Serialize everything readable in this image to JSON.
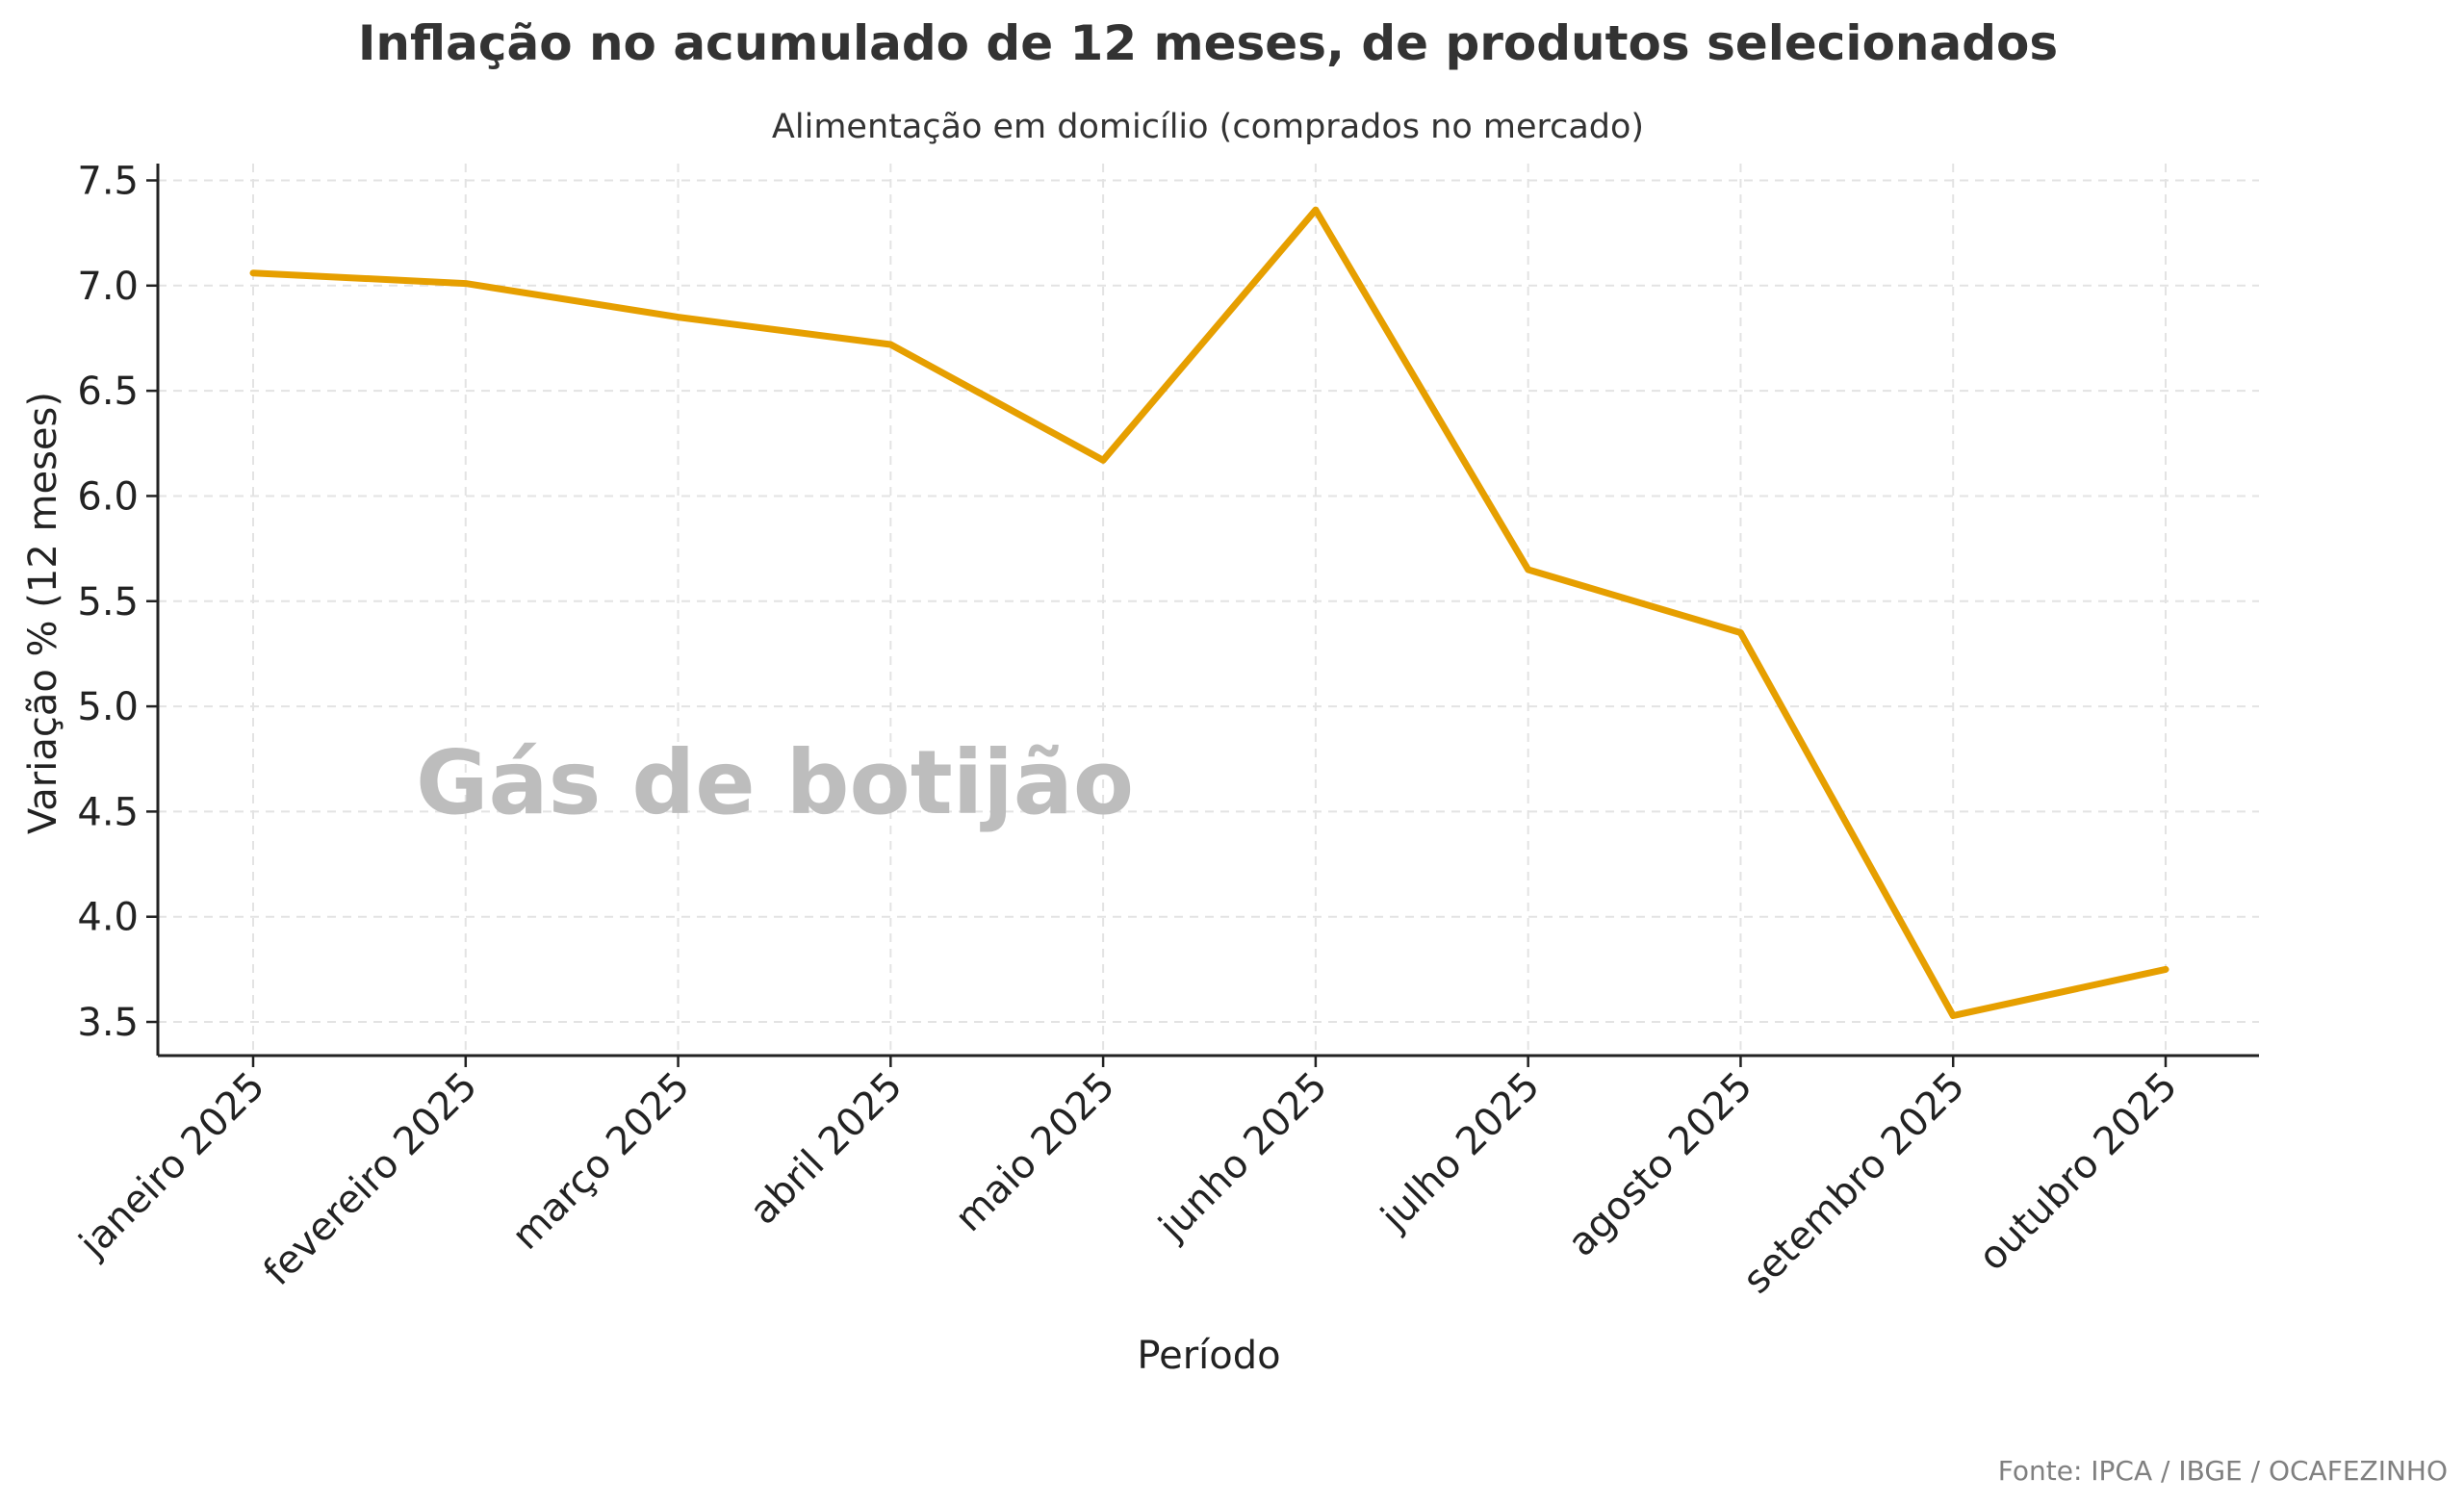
{
  "chart_data": {
    "type": "line",
    "title": "Inflação no acumulado de 12 meses, de produtos selecionados",
    "subtitle": "Alimentação em domicílio (comprados no mercado)",
    "xlabel": "Período",
    "ylabel": "Variação % (12 meses)",
    "categories": [
      "janeiro 2025",
      "fevereiro 2025",
      "março 2025",
      "abril 2025",
      "maio 2025",
      "junho 2025",
      "julho 2025",
      "agosto 2025",
      "setembro 2025",
      "outubro 2025"
    ],
    "series": [
      {
        "values": [
          7.06,
          7.01,
          6.85,
          6.72,
          6.17,
          7.36,
          5.65,
          5.35,
          3.53,
          3.75
        ],
        "color": "#E69F00"
      }
    ],
    "yticks": [
      "3.5",
      "4.0",
      "4.5",
      "5.0",
      "5.5",
      "6.0",
      "6.5",
      "7.0",
      "7.5"
    ],
    "ylim": [
      3.34,
      7.58
    ],
    "grid": true,
    "annotation": "Gás de botijão",
    "source": "Fonte: IPCA / IBGE / OCAFEZINHO"
  }
}
